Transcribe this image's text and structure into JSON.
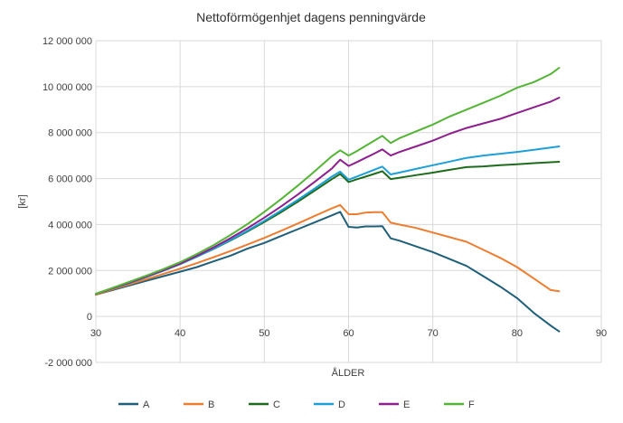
{
  "chart_data": {
    "type": "line",
    "title": "Nettoförmögenhjet dagens penningvärde",
    "xlabel": "ÅLDER",
    "ylabel": "[kr]",
    "xlim": [
      30,
      90
    ],
    "ylim": [
      -2000000,
      12000000
    ],
    "x_ticks": [
      30,
      40,
      50,
      60,
      70,
      80,
      90
    ],
    "y_ticks": [
      -2000000,
      0,
      2000000,
      4000000,
      6000000,
      8000000,
      10000000,
      12000000
    ],
    "y_tick_labels": [
      "-2 000 000",
      "0",
      "2 000 000",
      "4 000 000",
      "6 000 000",
      "8 000 000",
      "10 000 000",
      "12 000 000"
    ],
    "grid": "vertical and horizontal major gridlines",
    "legend_position": "bottom",
    "series": [
      {
        "name": "A",
        "color": "#1f5f7a",
        "x": [
          30,
          32,
          34,
          36,
          38,
          40,
          42,
          44,
          46,
          48,
          50,
          52,
          54,
          56,
          58,
          59,
          60,
          61,
          62,
          63,
          64,
          65,
          66,
          68,
          70,
          72,
          74,
          76,
          78,
          80,
          82,
          84,
          85
        ],
        "y": [
          950000,
          1150000,
          1350000,
          1550000,
          1750000,
          1950000,
          2150000,
          2400000,
          2650000,
          2950000,
          3200000,
          3500000,
          3800000,
          4100000,
          4400000,
          4550000,
          3900000,
          3870000,
          3920000,
          3920000,
          3930000,
          3400000,
          3300000,
          3050000,
          2800000,
          2500000,
          2200000,
          1750000,
          1300000,
          800000,
          150000,
          -400000,
          -650000
        ]
      },
      {
        "name": "B",
        "color": "#ed7d31",
        "x": [
          30,
          32,
          34,
          36,
          38,
          40,
          42,
          44,
          46,
          48,
          50,
          52,
          54,
          56,
          58,
          59,
          60,
          61,
          62,
          63,
          64,
          65,
          66,
          68,
          70,
          72,
          74,
          76,
          78,
          80,
          82,
          84,
          85
        ],
        "y": [
          950000,
          1180000,
          1400000,
          1620000,
          1850000,
          2080000,
          2320000,
          2580000,
          2850000,
          3130000,
          3420000,
          3730000,
          4050000,
          4380000,
          4700000,
          4850000,
          4450000,
          4450000,
          4520000,
          4540000,
          4540000,
          4080000,
          4000000,
          3850000,
          3650000,
          3450000,
          3250000,
          2900000,
          2550000,
          2150000,
          1650000,
          1150000,
          1100000
        ]
      },
      {
        "name": "C",
        "color": "#1e6b1e",
        "x": [
          30,
          32,
          34,
          36,
          38,
          40,
          42,
          44,
          46,
          48,
          50,
          52,
          54,
          56,
          58,
          59,
          60,
          61,
          62,
          63,
          64,
          65,
          66,
          68,
          70,
          72,
          74,
          76,
          78,
          80,
          82,
          84,
          85
        ],
        "y": [
          980000,
          1220000,
          1460000,
          1720000,
          1990000,
          2280000,
          2600000,
          2940000,
          3310000,
          3700000,
          4110000,
          4540000,
          5000000,
          5480000,
          5970000,
          6200000,
          5850000,
          5970000,
          6080000,
          6200000,
          6320000,
          5980000,
          6030000,
          6150000,
          6260000,
          6380000,
          6500000,
          6530000,
          6580000,
          6620000,
          6670000,
          6710000,
          6730000
        ]
      },
      {
        "name": "D",
        "color": "#1e9fd6",
        "x": [
          30,
          32,
          34,
          36,
          38,
          40,
          42,
          44,
          46,
          48,
          50,
          52,
          54,
          56,
          58,
          59,
          60,
          61,
          62,
          63,
          64,
          65,
          66,
          68,
          70,
          72,
          74,
          76,
          78,
          80,
          82,
          84,
          85
        ],
        "y": [
          980000,
          1220000,
          1460000,
          1720000,
          1990000,
          2280000,
          2600000,
          2950000,
          3330000,
          3730000,
          4160000,
          4610000,
          5080000,
          5570000,
          6080000,
          6300000,
          5950000,
          6090000,
          6230000,
          6380000,
          6520000,
          6180000,
          6260000,
          6420000,
          6580000,
          6740000,
          6900000,
          7000000,
          7080000,
          7160000,
          7250000,
          7350000,
          7400000
        ]
      },
      {
        "name": "E",
        "color": "#8e1f8e",
        "x": [
          30,
          32,
          34,
          36,
          38,
          40,
          42,
          44,
          46,
          48,
          50,
          52,
          54,
          56,
          58,
          59,
          60,
          61,
          62,
          63,
          64,
          65,
          66,
          68,
          70,
          72,
          74,
          76,
          78,
          80,
          82,
          84,
          85
        ],
        "y": [
          980000,
          1230000,
          1480000,
          1740000,
          2010000,
          2300000,
          2640000,
          3010000,
          3410000,
          3840000,
          4300000,
          4790000,
          5310000,
          5860000,
          6430000,
          6820000,
          6550000,
          6720000,
          6900000,
          7080000,
          7270000,
          7000000,
          7150000,
          7400000,
          7650000,
          7950000,
          8200000,
          8400000,
          8600000,
          8850000,
          9100000,
          9350000,
          9520000
        ]
      },
      {
        "name": "F",
        "color": "#54b435",
        "x": [
          30,
          32,
          34,
          36,
          38,
          40,
          42,
          44,
          46,
          48,
          50,
          52,
          54,
          56,
          58,
          59,
          60,
          61,
          62,
          63,
          64,
          65,
          66,
          68,
          70,
          72,
          74,
          76,
          78,
          80,
          82,
          84,
          85
        ],
        "y": [
          990000,
          1250000,
          1510000,
          1780000,
          2060000,
          2360000,
          2720000,
          3110000,
          3550000,
          4020000,
          4550000,
          5110000,
          5700000,
          6320000,
          6970000,
          7230000,
          7000000,
          7200000,
          7420000,
          7640000,
          7860000,
          7550000,
          7750000,
          8050000,
          8350000,
          8700000,
          9000000,
          9300000,
          9600000,
          9950000,
          10200000,
          10550000,
          10820000
        ]
      }
    ]
  }
}
